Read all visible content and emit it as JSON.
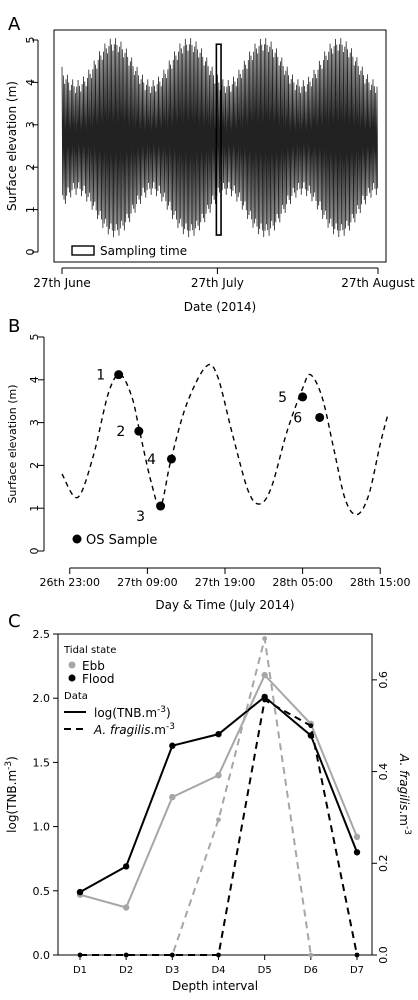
{
  "chart_data": [
    {
      "panel": "A",
      "type": "line",
      "xlabel": "Date (2014)",
      "ylabel": "Surface elevation (m)",
      "ylim": [
        0,
        5
      ],
      "yticks": [
        "0",
        "1",
        "2",
        "3",
        "4",
        "5"
      ],
      "xticks": [
        "27th June",
        "27th July",
        "27th August"
      ],
      "x_range_days": [
        0,
        61
      ],
      "xtick_days": [
        0,
        30,
        61
      ],
      "legend": [
        {
          "label": "Sampling time",
          "symbol": "rect"
        }
      ],
      "sampling_window": {
        "x_days": [
          29.8,
          30.7
        ],
        "y": [
          0.4,
          4.9
        ]
      },
      "tide": {
        "mean": 2.7,
        "spring_amplitude": 2.2,
        "neap_amplitude": 1.2,
        "period_hours": 12.42,
        "springs_at_days": [
          10,
          24.5,
          39,
          53.5
        ]
      }
    },
    {
      "panel": "B",
      "type": "line",
      "xlabel": "Day & Time (July 2014)",
      "ylabel": "Surface elevation (m)",
      "ylim": [
        0,
        5
      ],
      "yticks": [
        "0",
        "1",
        "2",
        "3",
        "4",
        "5"
      ],
      "xticks": [
        "26th 23:00",
        "27th 09:00",
        "27th 19:00",
        "28th 05:00",
        "28th 15:00"
      ],
      "xtick_hours": [
        0,
        10,
        20,
        30,
        40
      ],
      "x_range_hours": [
        -1,
        41
      ],
      "legend": [
        {
          "label": "OS Sample",
          "symbol": "dot"
        }
      ],
      "samples": [
        {
          "label": "1",
          "x": 6.3,
          "y": 4.12
        },
        {
          "label": "2",
          "x": 8.9,
          "y": 2.8
        },
        {
          "label": "3",
          "x": 11.7,
          "y": 1.05
        },
        {
          "label": "4",
          "x": 13.1,
          "y": 2.15
        },
        {
          "label": "5",
          "x": 30.0,
          "y": 3.6
        },
        {
          "label": "6",
          "x": 32.2,
          "y": 3.12
        }
      ],
      "tide_curve": [
        [
          -1,
          1.8
        ],
        [
          1,
          1.25
        ],
        [
          3,
          2.2
        ],
        [
          5,
          3.7
        ],
        [
          6.5,
          4.12
        ],
        [
          8,
          3.6
        ],
        [
          9,
          2.8
        ],
        [
          10.5,
          1.6
        ],
        [
          11.7,
          1.05
        ],
        [
          13,
          2.1
        ],
        [
          15,
          3.4
        ],
        [
          17.5,
          4.3
        ],
        [
          19,
          4.1
        ],
        [
          21,
          2.7
        ],
        [
          23,
          1.4
        ],
        [
          24.5,
          1.1
        ],
        [
          26,
          1.5
        ],
        [
          28,
          2.8
        ],
        [
          30,
          3.8
        ],
        [
          31,
          4.12
        ],
        [
          32.5,
          3.6
        ],
        [
          34,
          2.4
        ],
        [
          35.5,
          1.2
        ],
        [
          37,
          0.85
        ],
        [
          38.5,
          1.3
        ],
        [
          40,
          2.5
        ],
        [
          41,
          3.2
        ]
      ]
    },
    {
      "panel": "C",
      "type": "line",
      "xlabel": "Depth interval",
      "ylabel": "log(TNB.m",
      "ylabel_sup": "-3",
      "ylabel_end": ")",
      "ylabel_right_italic": "A. fragilis",
      "ylabel_right_rest": ".m",
      "ylabel_right_sup": "-3",
      "ylim": [
        0,
        2.5
      ],
      "yticks": [
        "0.0",
        "0.5",
        "1.0",
        "1.5",
        "2.0",
        "2.5"
      ],
      "ylim_right": [
        0,
        0.7
      ],
      "yticks_right": [
        "0.0",
        "0.2",
        "0.4",
        "0.6"
      ],
      "categories": [
        "D1",
        "D2",
        "D3",
        "D4",
        "D5",
        "D6",
        "D7"
      ],
      "legend": {
        "tidal_title": "Tidal state",
        "ebb": "Ebb",
        "flood": "Flood",
        "data_title": "Data",
        "tnb_prefix": "log(TNB.m",
        "tnb_sup": "-3",
        "tnb_suffix": ")",
        "af_italic": "A. fragilis",
        "af_rest": ".m",
        "af_sup": "-3"
      },
      "series": [
        {
          "name": "Ebb",
          "data": "log(TNB.m-3)",
          "axis": "left",
          "values": [
            0.47,
            0.37,
            1.23,
            1.4,
            2.18,
            1.8,
            0.92
          ]
        },
        {
          "name": "Flood",
          "data": "log(TNB.m-3)",
          "axis": "left",
          "values": [
            0.49,
            0.69,
            1.63,
            1.72,
            2.01,
            1.71,
            0.8
          ]
        },
        {
          "name": "Ebb",
          "data": "A. fragilis.m-3",
          "axis": "right",
          "values": [
            0,
            0,
            0,
            0.295,
            0.69,
            0,
            null
          ]
        },
        {
          "name": "Flood",
          "data": "A. fragilis.m-3",
          "axis": "right",
          "values": [
            0,
            0,
            0,
            0,
            0.556,
            0.5,
            0
          ]
        }
      ]
    }
  ],
  "colors": {
    "ebb": "#a6a6a6",
    "flood": "#000000"
  },
  "panel_labels": [
    "A",
    "B",
    "C"
  ]
}
